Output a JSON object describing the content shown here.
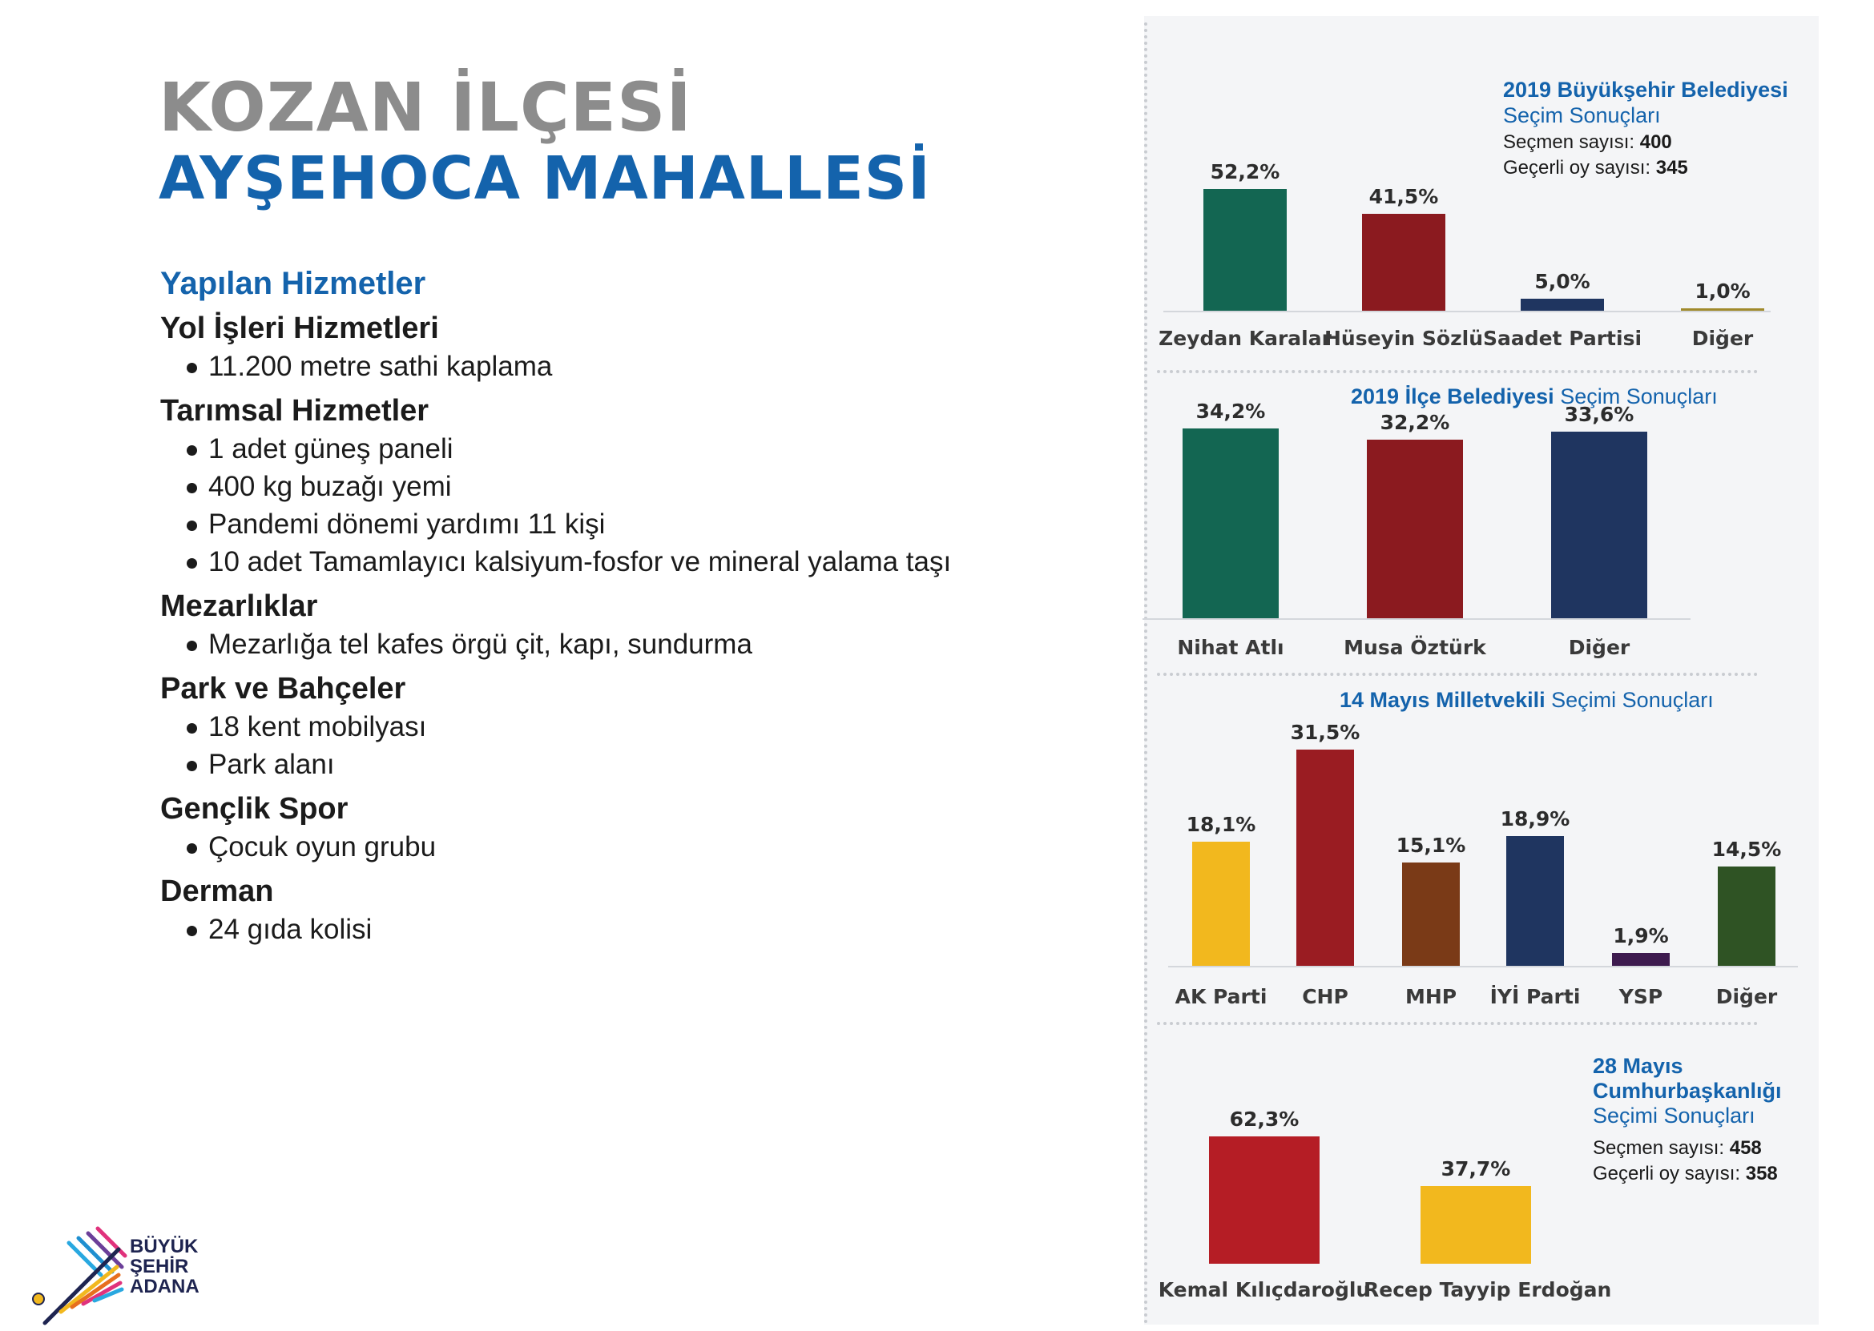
{
  "header": {
    "line1": "KOZAN İLÇESİ",
    "line2": "AYŞEHOCA MAHALLESİ"
  },
  "services": {
    "heading": "Yapılan Hizmetler",
    "categories": [
      {
        "title": "Yol İşleri Hizmetleri",
        "items": [
          "11.200 metre sathi kaplama"
        ]
      },
      {
        "title": "Tarımsal Hizmetler",
        "items": [
          "1 adet güneş paneli",
          "400 kg buzağı yemi",
          "Pandemi dönemi yardımı 11 kişi",
          "10 adet Tamamlayıcı kalsiyum-fosfor ve mineral yalama taşı"
        ]
      },
      {
        "title": "Mezarlıklar",
        "items": [
          "Mezarlığa tel kafes örgü çit, kapı, sundurma"
        ]
      },
      {
        "title": "Park ve Bahçeler",
        "items": [
          "18 kent mobilyası",
          "Park alanı"
        ]
      },
      {
        "title": "Gençlik Spor",
        "items": [
          "Çocuk oyun grubu"
        ]
      },
      {
        "title": "Derman",
        "items": [
          "24 gıda kolisi"
        ]
      }
    ]
  },
  "logo": {
    "line1": "BÜYÜK",
    "line2": "ŞEHİR",
    "line3": "ADANA"
  },
  "chart_data": [
    {
      "type": "bar",
      "title_bold": "2019 Büyükşehir Belediyesi",
      "title_light": "Seçim Sonuçları",
      "voters_label": "Seçmen sayısı:",
      "voters": "400",
      "valid_label": "Geçerli oy sayısı:",
      "valid": "345",
      "categories": [
        "Zeydan Karalar",
        "Hüseyin Sözlü",
        "Saadet Partisi",
        "Diğer"
      ],
      "values": [
        52.2,
        41.5,
        5.0,
        1.0
      ],
      "labels": [
        "52,2%",
        "41,5%",
        "5,0%",
        "1,0%"
      ],
      "colors": [
        "#136652",
        "#8b1a1f",
        "#1f3560",
        "#a08a2c"
      ]
    },
    {
      "type": "bar",
      "title_bold": "2019 İlçe Belediyesi",
      "title_light": "Seçim Sonuçları",
      "categories": [
        "Nihat Atlı",
        "Musa Öztürk",
        "Diğer"
      ],
      "values": [
        34.2,
        32.2,
        33.6
      ],
      "labels": [
        "34,2%",
        "32,2%",
        "33,6%"
      ],
      "colors": [
        "#136652",
        "#8b1a1f",
        "#1f3560"
      ]
    },
    {
      "type": "bar",
      "title_bold": "14 Mayıs Milletvekili",
      "title_light": "Seçimi Sonuçları",
      "categories": [
        "AK Parti",
        "CHP",
        "MHP",
        "İYİ Parti",
        "YSP",
        "Diğer"
      ],
      "values": [
        18.1,
        31.5,
        15.1,
        18.9,
        1.9,
        14.5
      ],
      "labels": [
        "18,1%",
        "31,5%",
        "15,1%",
        "18,9%",
        "1,9%",
        "14,5%"
      ],
      "colors": [
        "#f2b81e",
        "#9a1c22",
        "#7a3a17",
        "#1f3560",
        "#3e1b4f",
        "#2f5324"
      ]
    },
    {
      "type": "bar",
      "title_bold1": "28 Mayıs",
      "title_bold2": "Cumhurbaşkanlığı",
      "title_light": "Seçimi Sonuçları",
      "voters_label": "Seçmen sayısı:",
      "voters": "458",
      "valid_label": "Geçerli oy sayısı:",
      "valid": "358",
      "categories": [
        "Kemal Kılıçdaroğlu",
        "Recep Tayyip Erdoğan"
      ],
      "values": [
        62.3,
        37.7
      ],
      "labels": [
        "62,3%",
        "37,7%"
      ],
      "colors": [
        "#b51d25",
        "#f2b81e"
      ]
    }
  ]
}
